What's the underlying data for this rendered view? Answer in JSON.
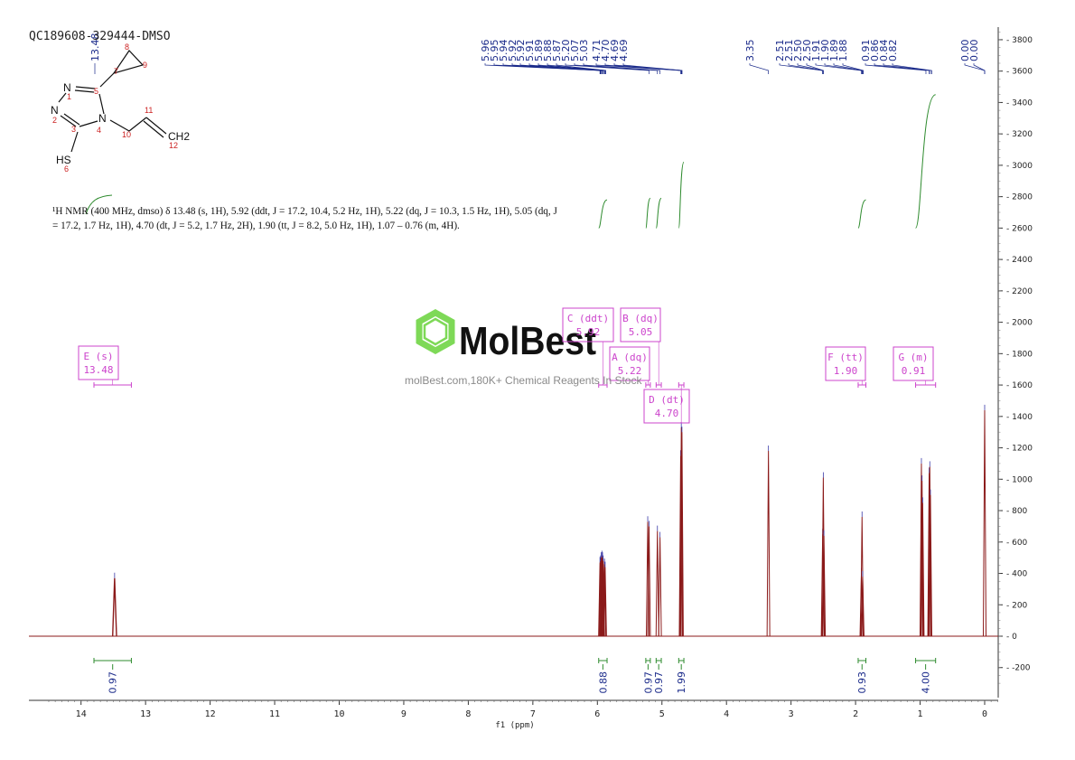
{
  "sample_id": "QC189608-329444-DMSO",
  "nmr_description": "¹H NMR (400 MHz, dmso) δ 13.48 (s, 1H), 5.92 (ddt, J = 17.2, 10.4, 5.2 Hz, 1H), 5.22 (dq, J = 10.3, 1.5 Hz, 1H), 5.05 (dq, J = 17.2, 1.7 Hz, 1H), 4.70 (dt, J = 5.2, 1.7 Hz, 2H), 1.90 (tt, J = 8.2, 5.0 Hz, 1H), 1.07 – 0.76 (m, 4H).",
  "watermark": {
    "brand": "MolBest",
    "subtitle": "molBest.com,180K+ Chemical Reagents In Stock",
    "color": "#7ed957"
  },
  "structure": {
    "atom_labels": [
      "N",
      "N",
      "N",
      "HS",
      "CH2"
    ],
    "atom_numbers": [
      "1",
      "2",
      "3",
      "4",
      "5",
      "6",
      "7",
      "8",
      "9",
      "10",
      "11",
      "12"
    ]
  },
  "chart_data": {
    "type": "line",
    "xlabel": "f1 (ppm)",
    "ylabel": "",
    "x_range": [
      14.6,
      -0.5
    ],
    "y_range": [
      -350,
      3900
    ],
    "x_ticks": [
      "14",
      "13",
      "12",
      "11",
      "10",
      "9",
      "8",
      "7",
      "6",
      "5",
      "4",
      "3",
      "2",
      "1",
      "0"
    ],
    "y_ticks": [
      "3800",
      "3600",
      "3400",
      "3200",
      "3000",
      "2800",
      "2600",
      "2400",
      "2200",
      "2000",
      "1800",
      "1600",
      "1400",
      "1200",
      "1000",
      "800",
      "600",
      "400",
      "200",
      "0",
      "-200"
    ],
    "peaks": [
      {
        "ppm": 13.48,
        "height": 370,
        "width": 0.02
      },
      {
        "ppm": 5.96,
        "height": 470,
        "width": 0.004
      },
      {
        "ppm": 5.95,
        "height": 480,
        "width": 0.004
      },
      {
        "ppm": 5.94,
        "height": 500,
        "width": 0.004
      },
      {
        "ppm": 5.93,
        "height": 510,
        "width": 0.004
      },
      {
        "ppm": 5.92,
        "height": 500,
        "width": 0.004
      },
      {
        "ppm": 5.91,
        "height": 480,
        "width": 0.004
      },
      {
        "ppm": 5.89,
        "height": 460,
        "width": 0.004
      },
      {
        "ppm": 5.88,
        "height": 440,
        "width": 0.004
      },
      {
        "ppm": 5.22,
        "height": 730,
        "width": 0.004
      },
      {
        "ppm": 5.2,
        "height": 700,
        "width": 0.004
      },
      {
        "ppm": 5.07,
        "height": 670,
        "width": 0.004
      },
      {
        "ppm": 5.03,
        "height": 630,
        "width": 0.004
      },
      {
        "ppm": 4.71,
        "height": 1150,
        "width": 0.004
      },
      {
        "ppm": 4.7,
        "height": 1330,
        "width": 0.004
      },
      {
        "ppm": 4.69,
        "height": 1300,
        "width": 0.004
      },
      {
        "ppm": 3.35,
        "height": 1180,
        "width": 0.004
      },
      {
        "ppm": 2.51,
        "height": 650,
        "width": 0.004
      },
      {
        "ppm": 2.5,
        "height": 1010,
        "width": 0.004
      },
      {
        "ppm": 2.49,
        "height": 640,
        "width": 0.004
      },
      {
        "ppm": 1.91,
        "height": 400,
        "width": 0.004
      },
      {
        "ppm": 1.9,
        "height": 760,
        "width": 0.004
      },
      {
        "ppm": 1.89,
        "height": 380,
        "width": 0.004
      },
      {
        "ppm": 0.98,
        "height": 1100,
        "width": 0.004
      },
      {
        "ppm": 0.97,
        "height": 990,
        "width": 0.004
      },
      {
        "ppm": 0.96,
        "height": 850,
        "width": 0.004
      },
      {
        "ppm": 0.86,
        "height": 1040,
        "width": 0.004
      },
      {
        "ppm": 0.85,
        "height": 1080,
        "width": 0.004
      },
      {
        "ppm": 0.84,
        "height": 900,
        "width": 0.004
      },
      {
        "ppm": 0.0,
        "height": 1440,
        "width": 0.004
      }
    ],
    "peak_labels": [
      "5.96",
      "5.95",
      "5.94",
      "5.92",
      "5.92",
      "5.91",
      "5.89",
      "5.88",
      "5.87",
      "5.20",
      "5.07",
      "5.03",
      "4.71",
      "4.70",
      "4.69",
      "4.69",
      "3.35",
      "2.51",
      "2.51",
      "2.50",
      "2.50",
      "1.91",
      "1.90",
      "1.89",
      "1.88",
      "0.91",
      "0.86",
      "0.84",
      "0.82",
      "0.00",
      "0.00"
    ],
    "multiplets": [
      {
        "letter": "E",
        "type": "(s)",
        "shift": "13.48",
        "range": [
          13.8,
          13.22
        ]
      },
      {
        "letter": "C",
        "type": "(ddt)",
        "shift": "5.92",
        "range": [
          5.98,
          5.85
        ]
      },
      {
        "letter": "B",
        "type": "(dq)",
        "shift": "5.05",
        "range": [
          5.09,
          5.01
        ]
      },
      {
        "letter": "A",
        "type": "(dq)",
        "shift": "5.22",
        "range": [
          5.25,
          5.18
        ]
      },
      {
        "letter": "D",
        "type": "(dt)",
        "shift": "4.70",
        "range": [
          4.74,
          4.66
        ]
      },
      {
        "letter": "F",
        "type": "(tt)",
        "shift": "1.90",
        "range": [
          1.96,
          1.84
        ]
      },
      {
        "letter": "G",
        "type": "(m)",
        "shift": "0.91",
        "range": [
          1.07,
          0.76
        ]
      }
    ],
    "integrals": [
      {
        "value": "0.97",
        "range": [
          13.8,
          13.22
        ]
      },
      {
        "value": "0.88",
        "range": [
          5.98,
          5.85
        ]
      },
      {
        "value": "0.97",
        "range": [
          5.25,
          5.18
        ]
      },
      {
        "value": "0.97",
        "range": [
          5.09,
          5.01
        ]
      },
      {
        "value": "1.99",
        "range": [
          4.74,
          4.66
        ]
      },
      {
        "value": "0.93",
        "range": [
          1.96,
          1.84
        ]
      },
      {
        "value": "4.00",
        "range": [
          1.07,
          0.76
        ]
      }
    ],
    "colors": {
      "spectrum": "#8b1a1a",
      "peak_marker": "#3a3aa8",
      "integral": "#2e8b2e",
      "box": "#cc44cc",
      "peak_label": "#1a2a8a"
    }
  }
}
